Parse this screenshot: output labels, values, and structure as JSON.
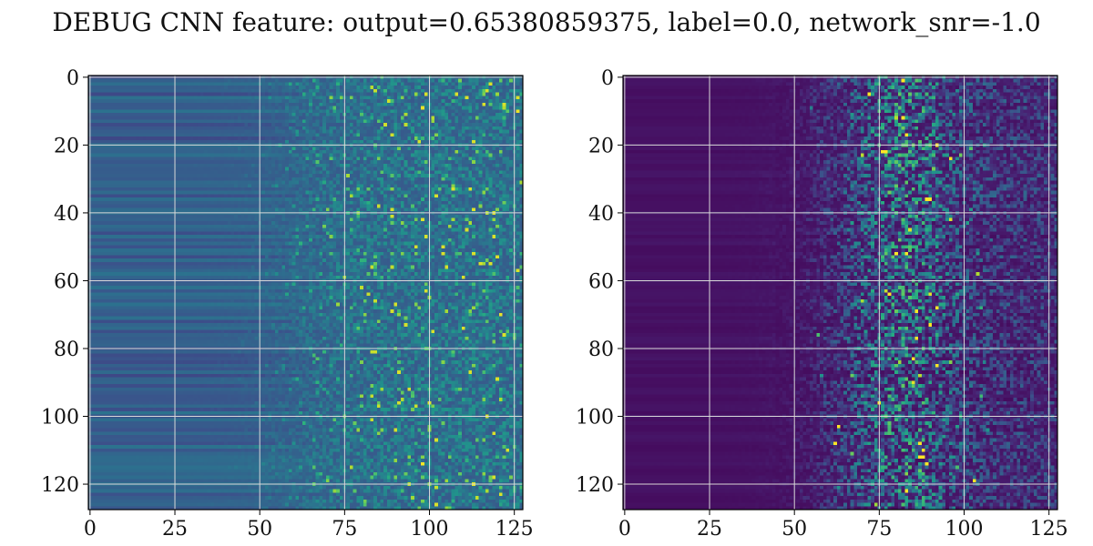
{
  "chart_data": {
    "title": "DEBUG CNN feature: output=0.65380859375, label=0.0, network_snr=-1.0",
    "panels": [
      {
        "type": "heatmap",
        "colormap": "viridis",
        "rows": 128,
        "cols": 128,
        "x_ticks": [
          0,
          25,
          50,
          75,
          100,
          125
        ],
        "y_ticks": [
          0,
          20,
          40,
          60,
          80,
          100,
          120
        ],
        "xlim": [
          -0.5,
          127.5
        ],
        "ylim": [
          127.5,
          -0.5
        ],
        "grid": true,
        "description": "Smooth mid-blue banded region on the left (x < 50), noisy speckled high values on the right (x > 75)"
      },
      {
        "type": "heatmap",
        "colormap": "viridis",
        "rows": 128,
        "cols": 128,
        "x_ticks": [
          0,
          25,
          50,
          75,
          100,
          125
        ],
        "y_ticks": [
          0,
          20,
          40,
          60,
          80,
          100,
          120
        ],
        "xlim": [
          -0.5,
          127.5
        ],
        "ylim": [
          127.5,
          -0.5
        ],
        "grid": true,
        "description": "Dark purple background with bright speckles concentrated around x = 70–100"
      }
    ]
  },
  "colors": {
    "grid": "#d9d9d9",
    "axes": "#000000",
    "text": "#111111"
  }
}
